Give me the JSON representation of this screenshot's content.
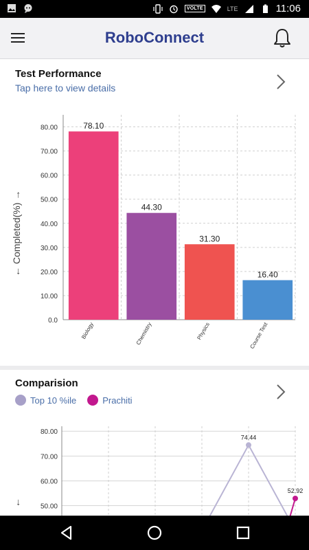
{
  "status_bar": {
    "volte": "VOLTE",
    "lte": "LTE",
    "time": "11:06"
  },
  "app": {
    "title": "RoboConnect"
  },
  "performance": {
    "title": "Test Performance",
    "subtitle": "Tap here to view details",
    "ylabel": "← Completed(%) →",
    "colors": [
      "#ec407a",
      "#9b4fa1",
      "#ef5350",
      "#4a8fd1"
    ]
  },
  "comparison": {
    "title": "Comparision",
    "legend": [
      {
        "label": "Top 10 %ile",
        "color": "#a7a0c8"
      },
      {
        "label": "Prachiti",
        "color": "#c2188e"
      }
    ],
    "ylabel": "← ",
    "colors": [
      "#b9b4d4",
      "#c2188e"
    ]
  },
  "chart_data": [
    {
      "type": "bar",
      "categories": [
        "Biology",
        "Chemistry",
        "Physics",
        "Course Test"
      ],
      "values": [
        78.1,
        44.3,
        31.3,
        16.4
      ],
      "value_labels": [
        "78.10",
        "44.30",
        "31.30",
        "16.40"
      ],
      "yticks": [
        "0.0",
        "10.00",
        "20.00",
        "30.00",
        "40.00",
        "50.00",
        "60.00",
        "70.00",
        "80.00"
      ],
      "ylim": [
        0,
        85
      ],
      "ylabel": "← Completed(%) →",
      "grid": true
    },
    {
      "type": "line",
      "yticks": [
        "50.00",
        "60.00",
        "70.00",
        "80.00"
      ],
      "ylim": [
        46,
        82
      ],
      "series": [
        {
          "name": "Top 10 %ile",
          "x": [
            3,
            4,
            5
          ],
          "values": [
            40,
            74.44,
            40
          ],
          "label": "74.44"
        },
        {
          "name": "Prachiti",
          "x": [
            4.8,
            5
          ],
          "values": [
            40,
            52.92
          ],
          "label": "52.92"
        }
      ],
      "grid": true
    }
  ]
}
